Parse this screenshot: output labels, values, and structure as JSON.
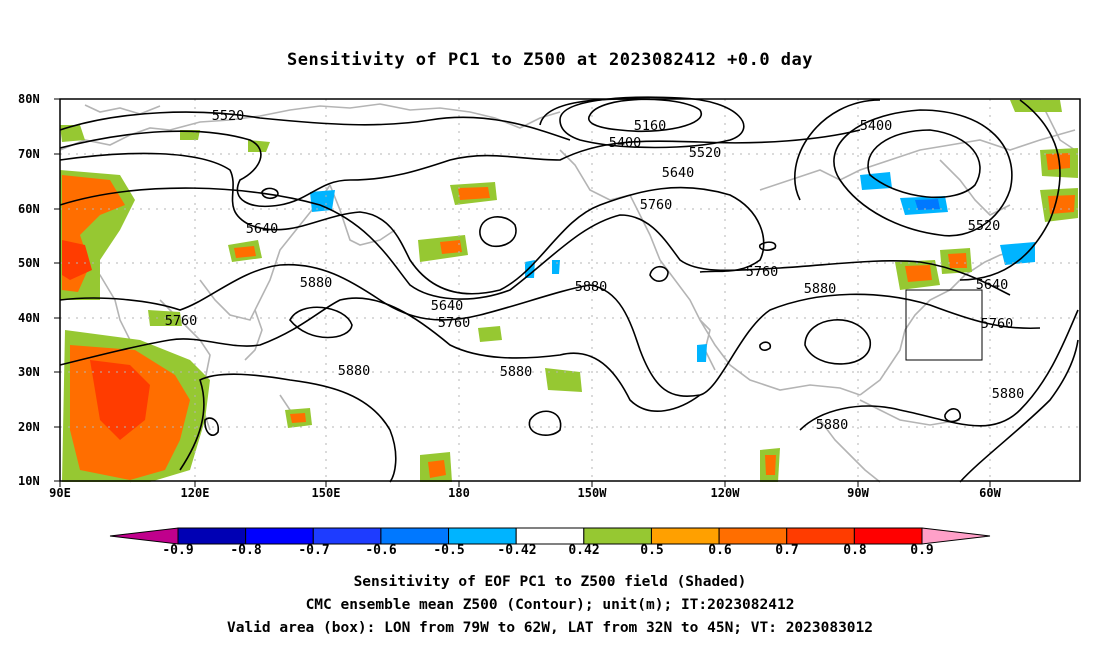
{
  "title": "Sensitivity of PC1 to Z500 at 2023082412 +0.0 day",
  "axes": {
    "lat_labels": [
      "80N",
      "70N",
      "60N",
      "50N",
      "40N",
      "30N",
      "20N",
      "10N"
    ],
    "lon_labels": [
      "90E",
      "120E",
      "150E",
      "180",
      "150W",
      "120W",
      "90W",
      "60W"
    ]
  },
  "contour_labels": [
    "5520",
    "5160",
    "5400",
    "5400",
    "5520",
    "5640",
    "5760",
    "5640",
    "5760",
    "5520",
    "5880",
    "5640",
    "5760",
    "5760",
    "5880",
    "5880",
    "5640",
    "5880",
    "5760",
    "5880",
    "5880",
    "5880"
  ],
  "colorbar": {
    "labels": [
      "-0.9",
      "-0.8",
      "-0.7",
      "-0.6",
      "-0.5",
      "-0.42",
      "0.42",
      "0.5",
      "0.6",
      "0.7",
      "0.8",
      "0.9"
    ],
    "colors": [
      "#c0008c",
      "#0000b4",
      "#0000ff",
      "#1e3cff",
      "#0078ff",
      "#00b4ff",
      "#ffffff",
      "#96c832",
      "#ffa000",
      "#ff6e00",
      "#ff3c00",
      "#ff0000",
      "#ffa0c8"
    ]
  },
  "box": {
    "lon_from": "79W",
    "lon_to": "62W",
    "lat_from": "32N",
    "lat_to": "45N"
  },
  "captions": {
    "line1": "Sensitivity of EOF PC1 to Z500 field (Shaded)",
    "line2": "CMC ensemble mean Z500 (Contour); unit(m); IT:2023082412",
    "line3": "Valid area (box): LON from 79W to 62W, LAT from 32N to 45N; VT: 2023083012"
  }
}
